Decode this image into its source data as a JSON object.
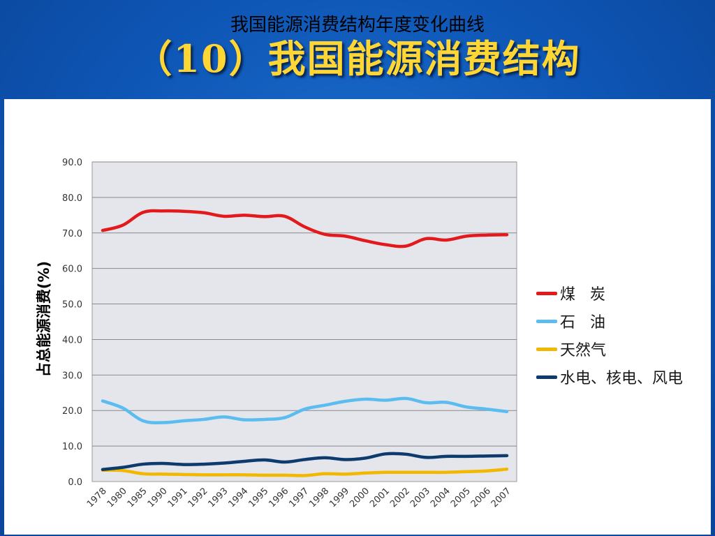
{
  "slide": {
    "title": "（10）我国能源消费结构"
  },
  "chart_data": {
    "type": "line",
    "title": "我国能源消费结构年度变化曲线",
    "xlabel": "",
    "ylabel": "占总能源消费(%)",
    "ylim": [
      0,
      90
    ],
    "yticks": [
      "0.0",
      "10.0",
      "20.0",
      "30.0",
      "40.0",
      "50.0",
      "60.0",
      "70.0",
      "80.0",
      "90.0"
    ],
    "categories": [
      "1978",
      "1980",
      "1985",
      "1990",
      "1991",
      "1992",
      "1993",
      "1994",
      "1995",
      "1996",
      "1997",
      "1998",
      "1999",
      "2000",
      "2001",
      "2002",
      "2003",
      "2004",
      "2005",
      "2006",
      "2007"
    ],
    "grid": true,
    "legend_position": "right",
    "series": [
      {
        "name": "煤 炭",
        "color": "#e31a1c",
        "values": [
          70.7,
          72.2,
          75.8,
          76.2,
          76.1,
          75.7,
          74.7,
          75.0,
          74.6,
          74.7,
          71.7,
          69.6,
          69.1,
          67.8,
          66.7,
          66.3,
          68.4,
          68.0,
          69.1,
          69.4,
          69.5
        ]
      },
      {
        "name": "石 油",
        "color": "#5bbcf0",
        "values": [
          22.7,
          20.7,
          17.1,
          16.6,
          17.1,
          17.5,
          18.2,
          17.4,
          17.5,
          18.0,
          20.4,
          21.5,
          22.6,
          23.2,
          22.9,
          23.4,
          22.2,
          22.3,
          21.0,
          20.4,
          19.7
        ]
      },
      {
        "name": "天然气",
        "color": "#f2b800",
        "values": [
          3.2,
          3.1,
          2.2,
          2.1,
          2.0,
          1.9,
          1.9,
          1.9,
          1.8,
          1.8,
          1.7,
          2.2,
          2.1,
          2.4,
          2.6,
          2.6,
          2.6,
          2.6,
          2.8,
          3.0,
          3.5
        ]
      },
      {
        "name": "水电、核电、风电",
        "color": "#0d3b6e",
        "values": [
          3.4,
          4.0,
          4.9,
          5.1,
          4.8,
          4.9,
          5.2,
          5.7,
          6.1,
          5.5,
          6.2,
          6.7,
          6.2,
          6.6,
          7.8,
          7.7,
          6.8,
          7.1,
          7.1,
          7.2,
          7.3
        ]
      }
    ]
  }
}
